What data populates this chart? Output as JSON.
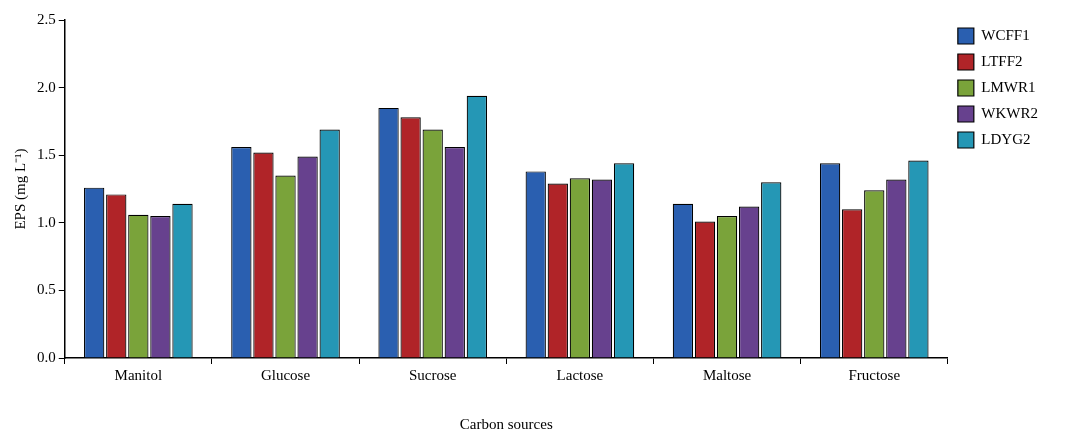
{
  "chart_data": {
    "type": "bar",
    "xlabel": "Carbon sources",
    "ylabel": "EPS (mg L⁻¹)",
    "categories": [
      "Manitol",
      "Glucose",
      "Sucrose",
      "Lactose",
      "Maltose",
      "Fructose"
    ],
    "series": [
      {
        "name": "WCFF1",
        "color": "#2a5fb0",
        "values": [
          1.26,
          1.56,
          1.85,
          1.38,
          1.14,
          1.44
        ]
      },
      {
        "name": "LTFF2",
        "color": "#b02428",
        "values": [
          1.21,
          1.52,
          1.78,
          1.29,
          1.01,
          1.1
        ]
      },
      {
        "name": "LMWR1",
        "color": "#7aa33a",
        "values": [
          1.06,
          1.35,
          1.69,
          1.33,
          1.05,
          1.24
        ]
      },
      {
        "name": "WKWR2",
        "color": "#67418e",
        "values": [
          1.05,
          1.49,
          1.56,
          1.32,
          1.12,
          1.32
        ]
      },
      {
        "name": "LDYG2",
        "color": "#2597b5",
        "values": [
          1.14,
          1.69,
          1.94,
          1.44,
          1.3,
          1.46
        ]
      }
    ],
    "ylim": [
      0,
      2.5
    ],
    "yticks": [
      {
        "value": 0,
        "label": "0.0"
      },
      {
        "value": 0.5,
        "label": "0.5"
      },
      {
        "value": 1,
        "label": "1.0"
      },
      {
        "value": 1.5,
        "label": "1.5"
      },
      {
        "value": 2,
        "label": "2.0"
      },
      {
        "value": 2.5,
        "label": "2.5"
      }
    ],
    "grid": false,
    "legend": "top right"
  }
}
